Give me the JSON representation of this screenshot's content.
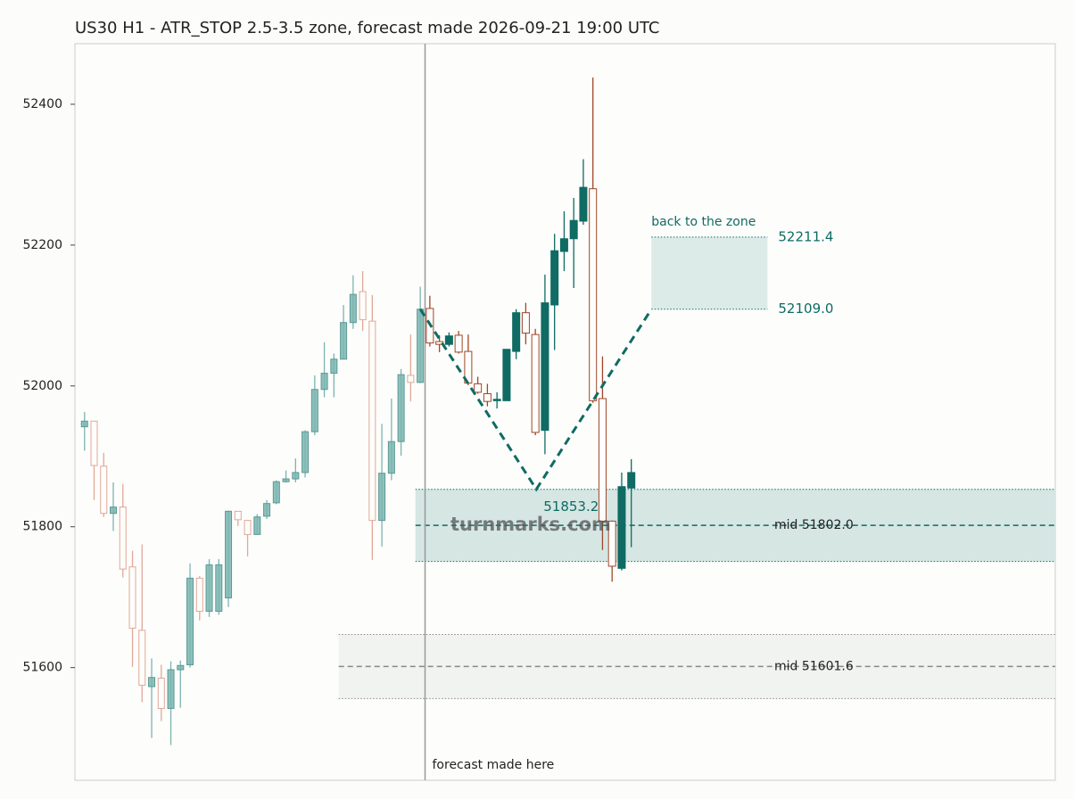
{
  "chart_data": {
    "type": "candlestick",
    "title": "US30 H1 - ATR_STOP 2.5-3.5 zone, forecast made 2026-09-21 19:00 UTC",
    "ylim": [
      51440,
      52486
    ],
    "yticks": [
      51600,
      51800,
      52000,
      52200,
      52400
    ],
    "xlim": [
      -1,
      101.2
    ],
    "forecast_start": 35.5,
    "forecast_label": "forecast made here",
    "watermark": "turnmarks.com",
    "history": {
      "up_color": "#7ab5b0",
      "down_color": "#e0a898",
      "open": [
        51942,
        51950,
        51886,
        51819,
        51828,
        51743,
        51653,
        51573,
        51585,
        51542,
        51597,
        51604,
        51727,
        51680,
        51680,
        51699,
        51822,
        51809,
        51789,
        51815,
        51834,
        51864,
        51868,
        51877,
        51935,
        51995,
        52018,
        52038,
        52090,
        52134,
        52092,
        51809,
        51876,
        51921,
        52015,
        52005
      ],
      "high": [
        51963,
        51950,
        51905,
        51863,
        51861,
        51766,
        51775,
        51613,
        51604,
        51609,
        51610,
        51748,
        51730,
        51754,
        51754,
        51823,
        51822,
        51809,
        51818,
        51838,
        51866,
        51880,
        51897,
        51937,
        52015,
        52062,
        52046,
        52115,
        52157,
        52163,
        52129,
        51946,
        51982,
        52024,
        52073,
        52141
      ],
      "low": [
        51908,
        51838,
        51814,
        51794,
        51728,
        51601,
        51551,
        51500,
        51524,
        51490,
        51543,
        51600,
        51667,
        51672,
        51675,
        51686,
        51801,
        51758,
        51789,
        51811,
        51832,
        51863,
        51863,
        51870,
        51930,
        51984,
        51984,
        52038,
        52081,
        52078,
        51753,
        51772,
        51866,
        51901,
        51978,
        52004
      ],
      "close": [
        51950,
        51887,
        51819,
        51828,
        51740,
        51656,
        51575,
        51586,
        51542,
        51597,
        51603,
        51727,
        51680,
        51746,
        51746,
        51822,
        51810,
        51789,
        51814,
        51833,
        51864,
        51868,
        51877,
        51935,
        51995,
        52018,
        52038,
        52090,
        52130,
        52094,
        51809,
        51876,
        51921,
        52016,
        52005,
        52109
      ]
    },
    "forecast": {
      "up_color": "#0f6b63",
      "down_color": "#a0472a",
      "open": [
        52110,
        52063,
        52059,
        52072,
        52049,
        52003,
        51989,
        51979,
        51979,
        52049,
        52104,
        52073,
        51937,
        52115,
        52191,
        52209,
        52234,
        52280,
        51982,
        51808,
        51741,
        51855
      ],
      "high": [
        52128,
        52072,
        52076,
        52078,
        52073,
        52013,
        52003,
        51991,
        52052,
        52109,
        52118,
        52081,
        52158,
        52216,
        52248,
        52267,
        52322,
        52438,
        52042,
        51809,
        51877,
        51896
      ],
      "low": [
        52056,
        52048,
        52056,
        52046,
        52001,
        51989,
        51971,
        51968,
        51979,
        52038,
        52059,
        51930,
        51903,
        52051,
        52163,
        52139,
        52229,
        51976,
        51767,
        51722,
        51738,
        51771
      ],
      "close": [
        52061,
        52059,
        52071,
        52048,
        52004,
        51991,
        51978,
        51981,
        52052,
        52104,
        52075,
        51934,
        52118,
        52192,
        52209,
        52235,
        52282,
        51979,
        51808,
        51744,
        51857,
        51877
      ]
    },
    "zones": [
      {
        "top": 51853.2,
        "bottom": 51750.8,
        "mid": 51802.0,
        "mid_label": "mid 51802.0",
        "start": 34.5,
        "color": "#0f6b63",
        "fill": "#d5e6e3"
      },
      {
        "top": 51647,
        "bottom": 51556,
        "mid": 51601.6,
        "mid_label": "mid 51601.6",
        "start": 26.5,
        "color": "#888888",
        "fill": "#f1f3f1"
      }
    ],
    "forecast_path": {
      "x": [
        35,
        47.1,
        59.1
      ],
      "y": [
        52109,
        51853.2,
        52109
      ],
      "low_label": "51853.2",
      "color": "#0f6b63"
    },
    "target_zone": {
      "label": "back to the zone",
      "top": 52211.4,
      "bottom": 52109.0,
      "top_label": "52211.4",
      "bottom_label": "52109.0",
      "start": 59.1,
      "end": 71.2,
      "fill": "#dcebe8",
      "color": "#0f6b63"
    }
  }
}
